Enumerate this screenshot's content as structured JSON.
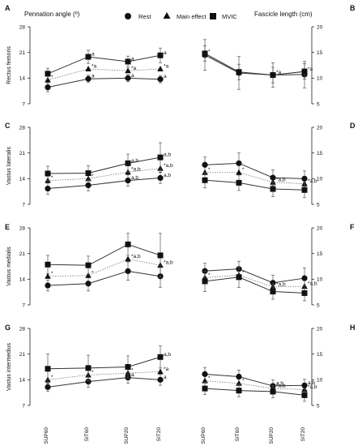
{
  "headers": {
    "left": "Pennation angle (º)",
    "right": "Fascicle length  (cm)"
  },
  "legend": [
    {
      "name": "Rest",
      "marker": "circle"
    },
    {
      "name": "Main effect",
      "marker": "triangle"
    },
    {
      "name": "MVIC",
      "marker": "square"
    }
  ],
  "x_categories": [
    "SUP60",
    "SIT60",
    "SUP20",
    "SIT20"
  ],
  "chart_data": [
    {
      "type": "line",
      "panel": "A",
      "side": "left",
      "ylabel": "Rectus femoris",
      "ylim": [
        7,
        28
      ],
      "yticks": [
        7,
        14,
        21,
        28
      ],
      "categories": [
        "SUP60",
        "SIT60",
        "SUP20",
        "SIT20"
      ],
      "series": [
        {
          "name": "Rest",
          "values": [
            11.5,
            13.8,
            14.0,
            13.7
          ],
          "err": [
            1.2,
            1.0,
            1.0,
            1.0
          ],
          "style": "solid",
          "annotations": [
            "",
            "a",
            "a",
            "a"
          ]
        },
        {
          "name": "Main effect",
          "values": [
            13.5,
            16.5,
            16.0,
            16.5
          ],
          "err": [
            0,
            0,
            0,
            0
          ],
          "style": "dotted",
          "annotations": [
            "*",
            "*a",
            "*a",
            "*a"
          ]
        },
        {
          "name": "MVIC",
          "values": [
            15.2,
            19.8,
            18.5,
            20.2
          ],
          "err": [
            1.5,
            1.8,
            1.5,
            2.0
          ],
          "style": "solid",
          "annotations": [
            "",
            "a",
            "a",
            "a"
          ]
        }
      ]
    },
    {
      "type": "line",
      "panel": "B",
      "side": "right",
      "ylabel": "",
      "ylim": [
        5,
        20
      ],
      "yticks": [
        5,
        10,
        15,
        20
      ],
      "categories": [
        "SUP60",
        "SIT60",
        "SUP20",
        "SIT20"
      ],
      "series": [
        {
          "name": "Rest",
          "values": [
            14.5,
            11.0,
            10.6,
            10.7
          ],
          "err": [
            3.0,
            3.2,
            2.4,
            2.6
          ],
          "style": "solid",
          "annotations": [
            "",
            "",
            "",
            ""
          ]
        },
        {
          "name": "Main effect",
          "values": [
            14.6,
            11.1,
            10.6,
            11.2
          ],
          "err": [
            0,
            0,
            0,
            0
          ],
          "style": "dotted",
          "annotations": [
            "*",
            "",
            "*a",
            "*a"
          ]
        },
        {
          "name": "MVIC",
          "values": [
            14.8,
            11.2,
            10.6,
            11.3
          ],
          "err": [
            1.5,
            1.5,
            1.5,
            1.5
          ],
          "style": "solid",
          "annotations": [
            "",
            "",
            "",
            ""
          ]
        }
      ]
    },
    {
      "type": "line",
      "panel": "C",
      "side": "left",
      "ylabel": "Vastus lateralis",
      "ylim": [
        7,
        28
      ],
      "yticks": [
        7,
        14,
        21,
        28
      ],
      "categories": [
        "SUP60",
        "SIT60",
        "SUP20",
        "SIT20"
      ],
      "series": [
        {
          "name": "Rest",
          "values": [
            11.3,
            12.2,
            13.5,
            14.2
          ],
          "err": [
            1.5,
            1.5,
            1.5,
            1.5
          ],
          "style": "solid",
          "annotations": [
            "",
            "",
            "a,b",
            "a,b"
          ]
        },
        {
          "name": "Main effect",
          "values": [
            13.5,
            14.0,
            15.8,
            16.8
          ],
          "err": [
            0,
            0,
            0,
            0
          ],
          "style": "dotted",
          "annotations": [
            "*",
            "*",
            "*a,b",
            "*a,b"
          ]
        },
        {
          "name": "MVIC",
          "values": [
            15.4,
            15.5,
            18.2,
            19.8
          ],
          "err": [
            2.0,
            2.0,
            2.5,
            4.0
          ],
          "style": "solid",
          "annotations": [
            "",
            "",
            "a,b",
            "a,b"
          ]
        }
      ]
    },
    {
      "type": "line",
      "panel": "D",
      "side": "right",
      "ylabel": "",
      "ylim": [
        5,
        20
      ],
      "yticks": [
        5,
        10,
        15,
        20
      ],
      "categories": [
        "SUP60",
        "SIT60",
        "SUP20",
        "SIT20"
      ],
      "series": [
        {
          "name": "Rest",
          "values": [
            12.7,
            13.0,
            10.2,
            10.0
          ],
          "err": [
            1.5,
            2.0,
            1.5,
            1.5
          ],
          "style": "solid",
          "annotations": [
            "",
            "",
            "",
            ""
          ]
        },
        {
          "name": "Main effect",
          "values": [
            11.2,
            11.2,
            9.3,
            9.0
          ],
          "err": [
            0,
            0,
            0,
            0
          ],
          "style": "dotted",
          "annotations": [
            "*",
            "*",
            "*a,b",
            "*a,b"
          ]
        },
        {
          "name": "MVIC",
          "values": [
            9.7,
            9.2,
            8.0,
            7.8
          ],
          "err": [
            1.5,
            1.5,
            1.5,
            1.5
          ],
          "style": "solid",
          "annotations": [
            "",
            "",
            "",
            ""
          ]
        }
      ]
    },
    {
      "type": "line",
      "panel": "E",
      "side": "left",
      "ylabel": "Vastus medialis",
      "ylim": [
        7,
        28
      ],
      "yticks": [
        7,
        14,
        21,
        28
      ],
      "categories": [
        "SUP60",
        "SIT60",
        "SUP20",
        "SIT20"
      ],
      "series": [
        {
          "name": "Rest",
          "values": [
            12.3,
            12.8,
            16.2,
            14.8
          ],
          "err": [
            1.5,
            2.0,
            2.5,
            3.0
          ],
          "style": "solid",
          "annotations": [
            "",
            "",
            "",
            ""
          ]
        },
        {
          "name": "Main effect",
          "values": [
            14.8,
            15.0,
            19.5,
            17.8
          ],
          "err": [
            0,
            0,
            0,
            0
          ],
          "style": "dotted",
          "annotations": [
            "*",
            "*",
            "*a,b",
            "*a,b"
          ]
        },
        {
          "name": "MVIC",
          "values": [
            18.0,
            17.8,
            23.5,
            20.5
          ],
          "err": [
            2.5,
            2.5,
            3.0,
            6.0
          ],
          "style": "solid",
          "annotations": [
            "",
            "",
            "",
            ""
          ]
        }
      ]
    },
    {
      "type": "line",
      "panel": "F",
      "side": "right",
      "ylabel": "",
      "ylim": [
        5,
        20
      ],
      "yticks": [
        5,
        10,
        15,
        20
      ],
      "categories": [
        "SUP60",
        "SIT60",
        "SUP20",
        "SIT20"
      ],
      "series": [
        {
          "name": "Rest",
          "values": [
            11.6,
            12.0,
            9.3,
            10.2
          ],
          "err": [
            1.5,
            1.5,
            1.5,
            2.0
          ],
          "style": "solid",
          "annotations": [
            "",
            "",
            "",
            ""
          ]
        },
        {
          "name": "Main effect",
          "values": [
            10.3,
            10.8,
            8.5,
            8.6
          ],
          "err": [
            0,
            0,
            0,
            0
          ],
          "style": "dotted",
          "annotations": [
            "*",
            "*",
            "*a,b",
            "*a,b"
          ]
        },
        {
          "name": "MVIC",
          "values": [
            9.6,
            10.4,
            7.6,
            7.3
          ],
          "err": [
            2.0,
            2.0,
            1.5,
            1.5
          ],
          "style": "solid",
          "annotations": [
            "",
            "",
            "",
            ""
          ]
        }
      ]
    },
    {
      "type": "line",
      "panel": "G",
      "side": "left",
      "ylabel": "Vastus intermedius",
      "ylim": [
        7,
        28
      ],
      "yticks": [
        7,
        14,
        21,
        28
      ],
      "categories": [
        "SUP60",
        "SIT60",
        "SUP20",
        "SIT20"
      ],
      "series": [
        {
          "name": "Rest",
          "values": [
            12.0,
            13.5,
            14.6,
            14.0
          ],
          "err": [
            1.2,
            1.5,
            1.5,
            1.5
          ],
          "style": "solid",
          "annotations": [
            "",
            "",
            "a",
            "a"
          ]
        },
        {
          "name": "Main effect",
          "values": [
            14.0,
            15.3,
            15.8,
            16.2
          ],
          "err": [
            0,
            0,
            0,
            0
          ],
          "style": "dotted",
          "annotations": [
            "*",
            "*",
            "*",
            "*a"
          ]
        },
        {
          "name": "MVIC",
          "values": [
            17.0,
            17.2,
            17.5,
            20.2
          ],
          "err": [
            4.0,
            3.5,
            3.0,
            3.0
          ],
          "style": "solid",
          "annotations": [
            "",
            "",
            "",
            "a,b"
          ]
        }
      ]
    },
    {
      "type": "line",
      "panel": "H",
      "side": "right",
      "ylabel": "",
      "ylim": [
        5,
        20
      ],
      "yticks": [
        5,
        10,
        15,
        20
      ],
      "categories": [
        "SUP60",
        "SIT60",
        "SUP20",
        "SIT20"
      ],
      "series": [
        {
          "name": "Rest",
          "values": [
            11.1,
            10.6,
            8.8,
            8.9
          ],
          "err": [
            1.3,
            1.3,
            1.2,
            1.2
          ],
          "style": "solid",
          "annotations": [
            "",
            "",
            "a,b",
            "a,b"
          ]
        },
        {
          "name": "Main effect",
          "values": [
            9.8,
            9.3,
            8.3,
            8.1
          ],
          "err": [
            0,
            0,
            0,
            0
          ],
          "style": "dotted",
          "annotations": [
            "*",
            "*",
            "*a,b",
            "*a,b"
          ]
        },
        {
          "name": "MVIC",
          "values": [
            8.3,
            7.9,
            7.7,
            7.0
          ],
          "err": [
            1.2,
            1.2,
            1.2,
            1.2
          ],
          "style": "solid",
          "annotations": [
            "",
            "",
            "",
            ""
          ]
        }
      ]
    }
  ]
}
